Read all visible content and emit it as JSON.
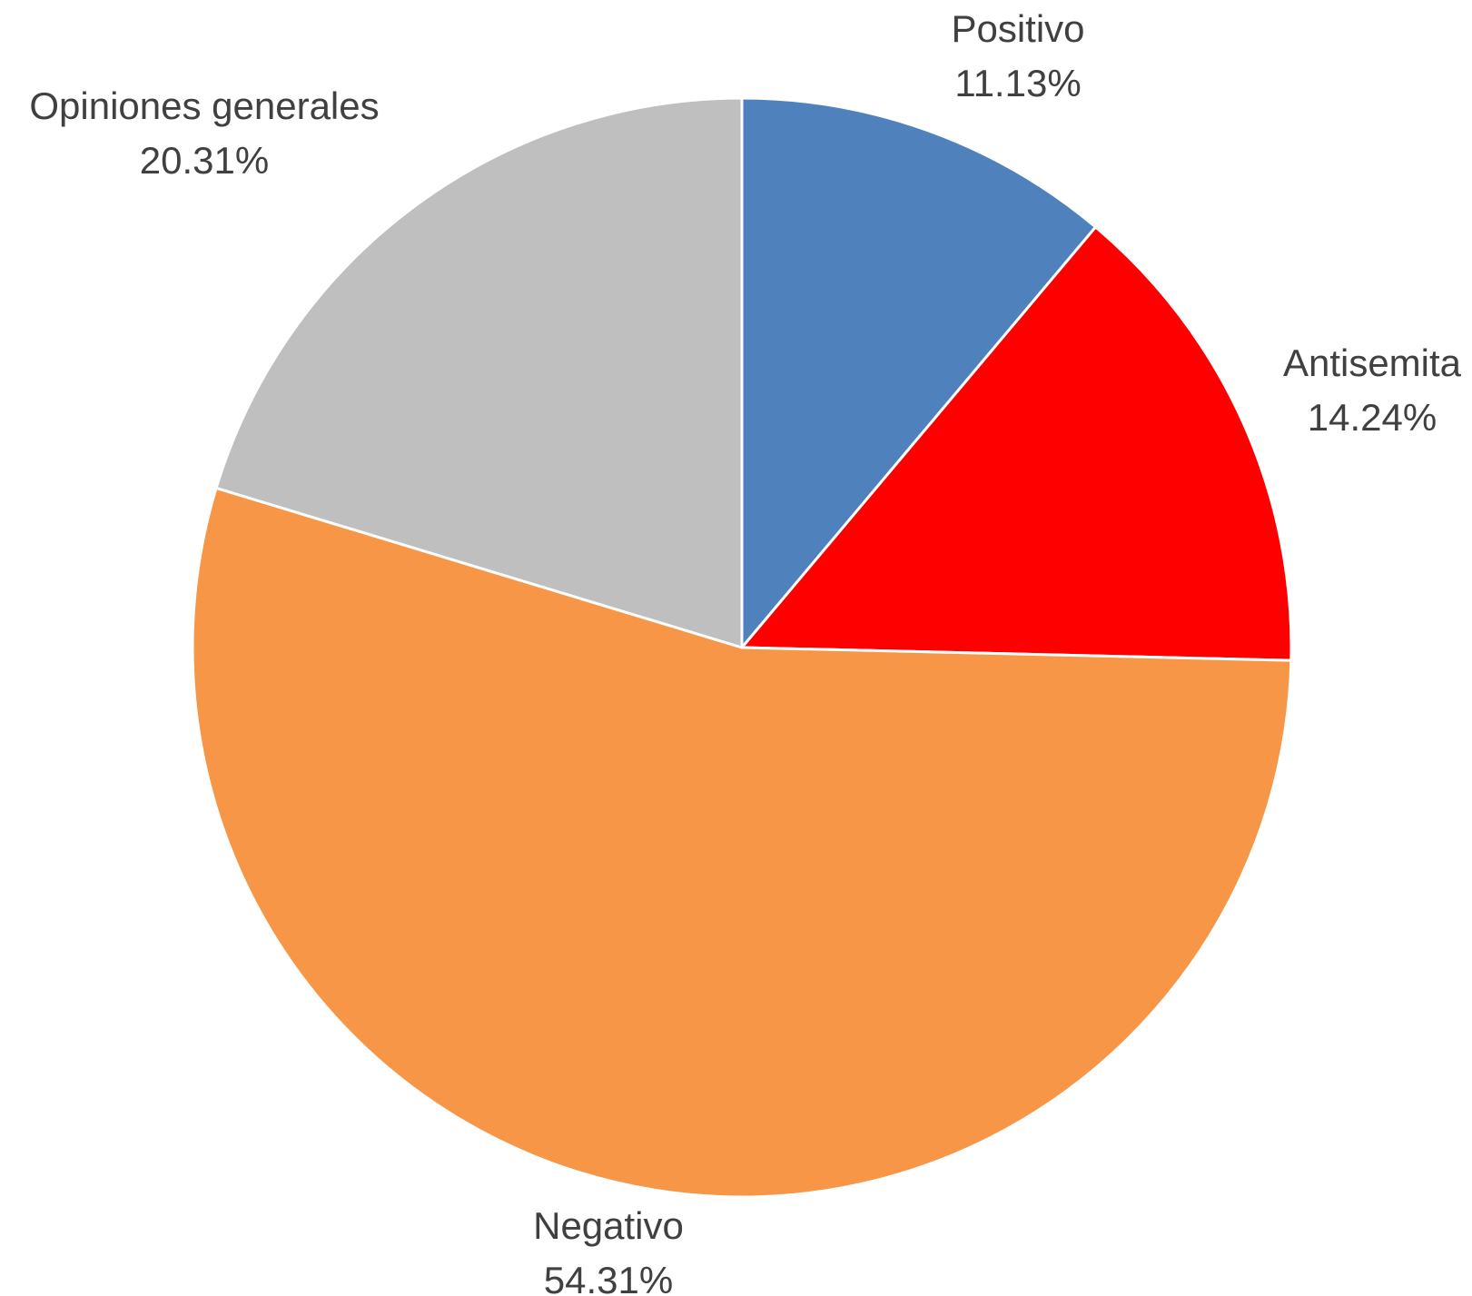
{
  "chart_data": {
    "type": "pie",
    "title": "",
    "slices": [
      {
        "label": "Positivo",
        "value": 11.13,
        "display": "11.13%",
        "color": "#4f81bd"
      },
      {
        "label": "Antisemita",
        "value": 14.24,
        "display": "14.24%",
        "color": "#ff0000"
      },
      {
        "label": "Negativo",
        "value": 54.31,
        "display": "54.31%",
        "color": "#f79646"
      },
      {
        "label": "Opiniones generales",
        "value": 20.31,
        "display": "20.31%",
        "color": "#bfbfbf"
      }
    ],
    "start_angle": "12 o'clock",
    "direction": "clockwise",
    "legend": "none",
    "data_labels": "outside"
  }
}
